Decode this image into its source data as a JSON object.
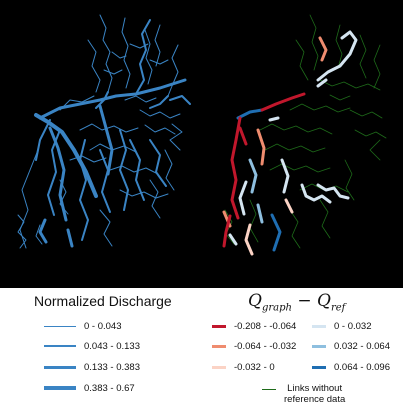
{
  "colors": {
    "background": "#000000",
    "normalized_blue": "#3a84c4",
    "no_reference_green": "#1e6b1a",
    "diff_neg_strong": "#c1172c",
    "diff_neg_mid": "#ef8c6f",
    "diff_neg_weak": "#fbd3c5",
    "diff_pos_weak": "#d5e5f1",
    "diff_pos_mid": "#8ebfdf",
    "diff_pos_strong": "#1f6eb2"
  },
  "legend_left": {
    "title": "Normalized Discharge",
    "items": [
      {
        "label": "0 - 0.043",
        "color": "#3a84c4",
        "weight": 1
      },
      {
        "label": "0.043 - 0.133",
        "color": "#3a84c4",
        "weight": 2
      },
      {
        "label": "0.133 - 0.383",
        "color": "#3a84c4",
        "weight": 3
      },
      {
        "label": "0.383 - 0.67",
        "color": "#3a84c4",
        "weight": 4
      }
    ]
  },
  "legend_right": {
    "title_main": "Q",
    "title_sub1": "graph",
    "title_minus": " − Q",
    "title_sub2": "ref",
    "items": [
      {
        "label": "-0.208 - -0.064",
        "color": "#c1172c",
        "weight": 3
      },
      {
        "label": "-0.064 - -0.032",
        "color": "#ef8c6f",
        "weight": 3
      },
      {
        "label": "-0.032 - 0",
        "color": "#fbd3c5",
        "weight": 3
      },
      {
        "label": "0 - 0.032",
        "color": "#d5e5f1",
        "weight": 3
      },
      {
        "label": "0.032 - 0.064",
        "color": "#8ebfdf",
        "weight": 3
      },
      {
        "label": "0.064 - 0.096",
        "color": "#1f6eb2",
        "weight": 3
      },
      {
        "label": "Links without\nreference data",
        "color": "#1e6b1a",
        "weight": 1
      }
    ]
  }
}
